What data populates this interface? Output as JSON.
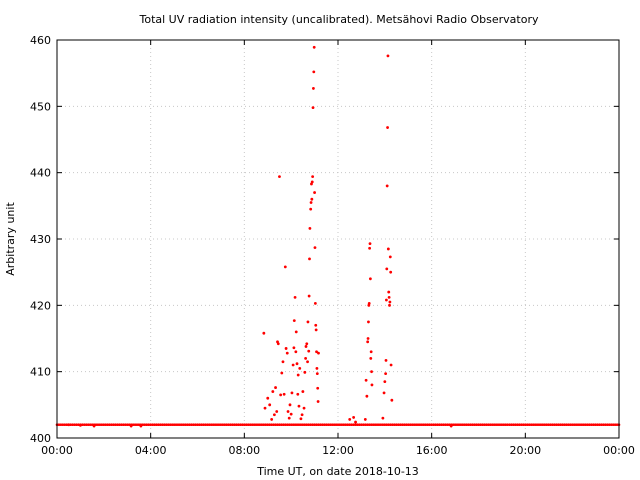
{
  "chart_data": {
    "type": "scatter",
    "title": "Total UV radiation intensity (uncalibrated). Metsähovi Radio Observatory",
    "xlabel": "Time UT, on date 2018-10-13",
    "ylabel": "Arbitrary unit",
    "xlim": [
      "00:00",
      "24:00"
    ],
    "ylim": [
      400,
      460
    ],
    "x_ticks": [
      "00:00",
      "04:00",
      "08:00",
      "12:00",
      "16:00",
      "20:00",
      "00:00"
    ],
    "y_ticks": [
      400,
      410,
      420,
      430,
      440,
      450,
      460
    ],
    "grid": true,
    "marker_color": "#ff0000",
    "series": [
      {
        "baseline_value": 402,
        "baseline_time_range": [
          "00:00",
          "24:00"
        ],
        "baseline_interval_minutes": 5,
        "points": [
          [
            "00:30",
            402
          ],
          [
            "01:00",
            401.9
          ],
          [
            "01:35",
            401.8
          ],
          [
            "03:10",
            401.8
          ],
          [
            "03:35",
            401.8
          ],
          [
            "08:50",
            415.8
          ],
          [
            "08:53",
            404.5
          ],
          [
            "09:00",
            406
          ],
          [
            "09:05",
            405
          ],
          [
            "09:10",
            402.8
          ],
          [
            "09:13",
            407
          ],
          [
            "09:17",
            403.5
          ],
          [
            "09:20",
            407.6
          ],
          [
            "09:23",
            404
          ],
          [
            "09:25",
            414.5
          ],
          [
            "09:27",
            414.2
          ],
          [
            "09:30",
            439.4
          ],
          [
            "09:33",
            406.5
          ],
          [
            "09:36",
            409.8
          ],
          [
            "09:39",
            411.5
          ],
          [
            "09:42",
            406.6
          ],
          [
            "09:45",
            425.8
          ],
          [
            "09:47",
            413.5
          ],
          [
            "09:50",
            412.8
          ],
          [
            "09:52",
            404
          ],
          [
            "09:55",
            403
          ],
          [
            "09:57",
            405
          ],
          [
            "10:00",
            403.6
          ],
          [
            "10:02",
            406.8
          ],
          [
            "10:05",
            411
          ],
          [
            "10:07",
            413.6
          ],
          [
            "10:08",
            417.7
          ],
          [
            "10:10",
            421.2
          ],
          [
            "10:12",
            413
          ],
          [
            "10:13",
            416
          ],
          [
            "10:15",
            411.2
          ],
          [
            "10:17",
            406.6
          ],
          [
            "10:18",
            409.5
          ],
          [
            "10:20",
            404.8
          ],
          [
            "10:22",
            410.5
          ],
          [
            "10:25",
            402.9
          ],
          [
            "10:28",
            403.5
          ],
          [
            "10:30",
            407
          ],
          [
            "10:33",
            404.5
          ],
          [
            "10:35",
            409.9
          ],
          [
            "10:37",
            412
          ],
          [
            "10:38",
            413.8
          ],
          [
            "10:40",
            414.2
          ],
          [
            "10:42",
            411.5
          ],
          [
            "10:43",
            417.5
          ],
          [
            "10:45",
            413.1
          ],
          [
            "10:46",
            421.4
          ],
          [
            "10:47",
            427
          ],
          [
            "10:48",
            431.6
          ],
          [
            "10:50",
            434.5
          ],
          [
            "10:51",
            435.5
          ],
          [
            "10:52",
            438.3
          ],
          [
            "10:53",
            436
          ],
          [
            "10:54",
            438.6
          ],
          [
            "10:55",
            439.4
          ],
          [
            "10:56",
            449.8
          ],
          [
            "10:57",
            452.7
          ],
          [
            "10:58",
            455.2
          ],
          [
            "10:59",
            458.9
          ],
          [
            "11:00",
            437
          ],
          [
            "11:01",
            428.7
          ],
          [
            "11:02",
            420.3
          ],
          [
            "11:03",
            417
          ],
          [
            "11:04",
            416.3
          ],
          [
            "11:05",
            413
          ],
          [
            "11:06",
            410.5
          ],
          [
            "11:07",
            409.7
          ],
          [
            "11:08",
            407.5
          ],
          [
            "11:09",
            405.5
          ],
          [
            "11:10",
            412.8
          ],
          [
            "12:30",
            402.8
          ],
          [
            "12:40",
            403.1
          ],
          [
            "12:45",
            402.4
          ],
          [
            "13:10",
            402.8
          ],
          [
            "13:12",
            408.7
          ],
          [
            "13:14",
            406.3
          ],
          [
            "13:16",
            414.5
          ],
          [
            "13:17",
            415
          ],
          [
            "13:18",
            417.5
          ],
          [
            "13:19",
            420
          ],
          [
            "13:20",
            420.3
          ],
          [
            "13:21",
            428.6
          ],
          [
            "13:22",
            429.3
          ],
          [
            "13:23",
            424
          ],
          [
            "13:24",
            412
          ],
          [
            "13:25",
            413
          ],
          [
            "13:26",
            410
          ],
          [
            "13:27",
            408
          ],
          [
            "13:55",
            403
          ],
          [
            "13:58",
            406.8
          ],
          [
            "14:00",
            408.5
          ],
          [
            "14:02",
            409.7
          ],
          [
            "14:03",
            411.7
          ],
          [
            "14:04",
            420.8
          ],
          [
            "14:05",
            425.5
          ],
          [
            "14:06",
            438
          ],
          [
            "14:07",
            446.8
          ],
          [
            "14:08",
            457.6
          ],
          [
            "14:09",
            428.5
          ],
          [
            "14:10",
            422
          ],
          [
            "14:11",
            421.2
          ],
          [
            "14:12",
            420
          ],
          [
            "14:13",
            420.5
          ],
          [
            "14:14",
            427.3
          ],
          [
            "14:15",
            425
          ],
          [
            "14:16",
            411
          ],
          [
            "14:18",
            405.7
          ],
          [
            "16:50",
            401.8
          ]
        ]
      }
    ]
  }
}
